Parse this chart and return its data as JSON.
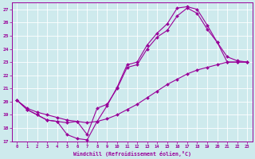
{
  "xlabel": "Windchill (Refroidissement éolien,°C)",
  "bg_color": "#ceeaed",
  "line_color": "#990099",
  "xlim": [
    -0.5,
    23.5
  ],
  "ylim": [
    17,
    27.5
  ],
  "yticks": [
    17,
    18,
    19,
    20,
    21,
    22,
    23,
    24,
    25,
    26,
    27
  ],
  "xticks": [
    0,
    1,
    2,
    3,
    4,
    5,
    6,
    7,
    8,
    9,
    10,
    11,
    12,
    13,
    14,
    15,
    16,
    17,
    18,
    19,
    20,
    21,
    22,
    23
  ],
  "curve1_x": [
    0,
    1,
    2,
    3,
    4,
    5,
    6,
    7,
    8,
    9,
    10,
    11,
    12,
    13,
    14,
    15,
    16,
    17,
    18,
    19,
    20,
    21,
    22,
    23
  ],
  "curve1_y": [
    20.1,
    19.4,
    19.0,
    18.6,
    18.5,
    17.5,
    17.2,
    17.1,
    18.5,
    19.7,
    21.1,
    22.8,
    23.0,
    24.3,
    25.2,
    25.9,
    27.1,
    27.2,
    27.0,
    25.8,
    24.5,
    23.0,
    23.0,
    23.0
  ],
  "curve2_x": [
    0,
    1,
    2,
    3,
    4,
    5,
    6,
    7,
    8,
    9,
    10,
    11,
    12,
    13,
    14,
    15,
    16,
    17,
    18,
    19,
    20,
    21,
    22,
    23
  ],
  "curve2_y": [
    20.1,
    19.5,
    19.2,
    19.0,
    18.8,
    18.6,
    18.5,
    18.4,
    18.5,
    18.7,
    19.0,
    19.4,
    19.8,
    20.3,
    20.8,
    21.3,
    21.7,
    22.1,
    22.4,
    22.6,
    22.8,
    23.0,
    23.0,
    23.0
  ],
  "curve3_x": [
    0,
    1,
    2,
    3,
    4,
    5,
    6,
    7,
    8,
    9,
    10,
    11,
    12,
    13,
    14,
    15,
    16,
    17,
    18,
    19,
    20,
    21,
    22,
    23
  ],
  "curve3_y": [
    20.1,
    19.4,
    19.0,
    18.6,
    18.5,
    18.4,
    18.5,
    17.5,
    19.5,
    19.8,
    21.0,
    22.6,
    22.8,
    24.0,
    24.9,
    25.4,
    26.5,
    27.1,
    26.7,
    25.5,
    24.5,
    23.4,
    23.1,
    23.0
  ]
}
